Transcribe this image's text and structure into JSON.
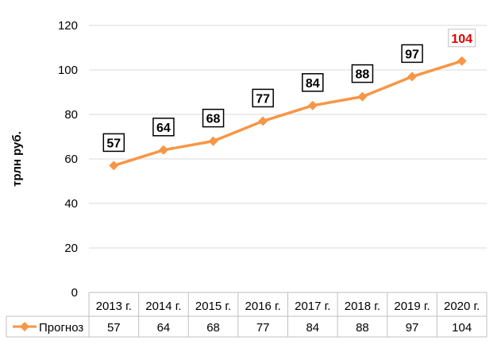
{
  "chart_data": {
    "type": "line",
    "title": "",
    "xlabel": "",
    "ylabel": "трлн руб.",
    "ylim": [
      0,
      120
    ],
    "yticks": [
      0,
      20,
      40,
      60,
      80,
      100,
      120
    ],
    "grid": true,
    "categories": [
      "2013 г.",
      "2014 г.",
      "2015 г.",
      "2016 г.",
      "2017 г.",
      "2018 г.",
      "2019 г.",
      "2020 г."
    ],
    "series": [
      {
        "name": "Прогноз",
        "values": [
          57,
          64,
          68,
          77,
          84,
          88,
          97,
          104
        ],
        "color": "#F79646"
      }
    ],
    "data_labels": [
      "57",
      "64",
      "68",
      "77",
      "84",
      "88",
      "97",
      "104"
    ],
    "highlight_color": "#E00000",
    "legend": "data-table"
  }
}
